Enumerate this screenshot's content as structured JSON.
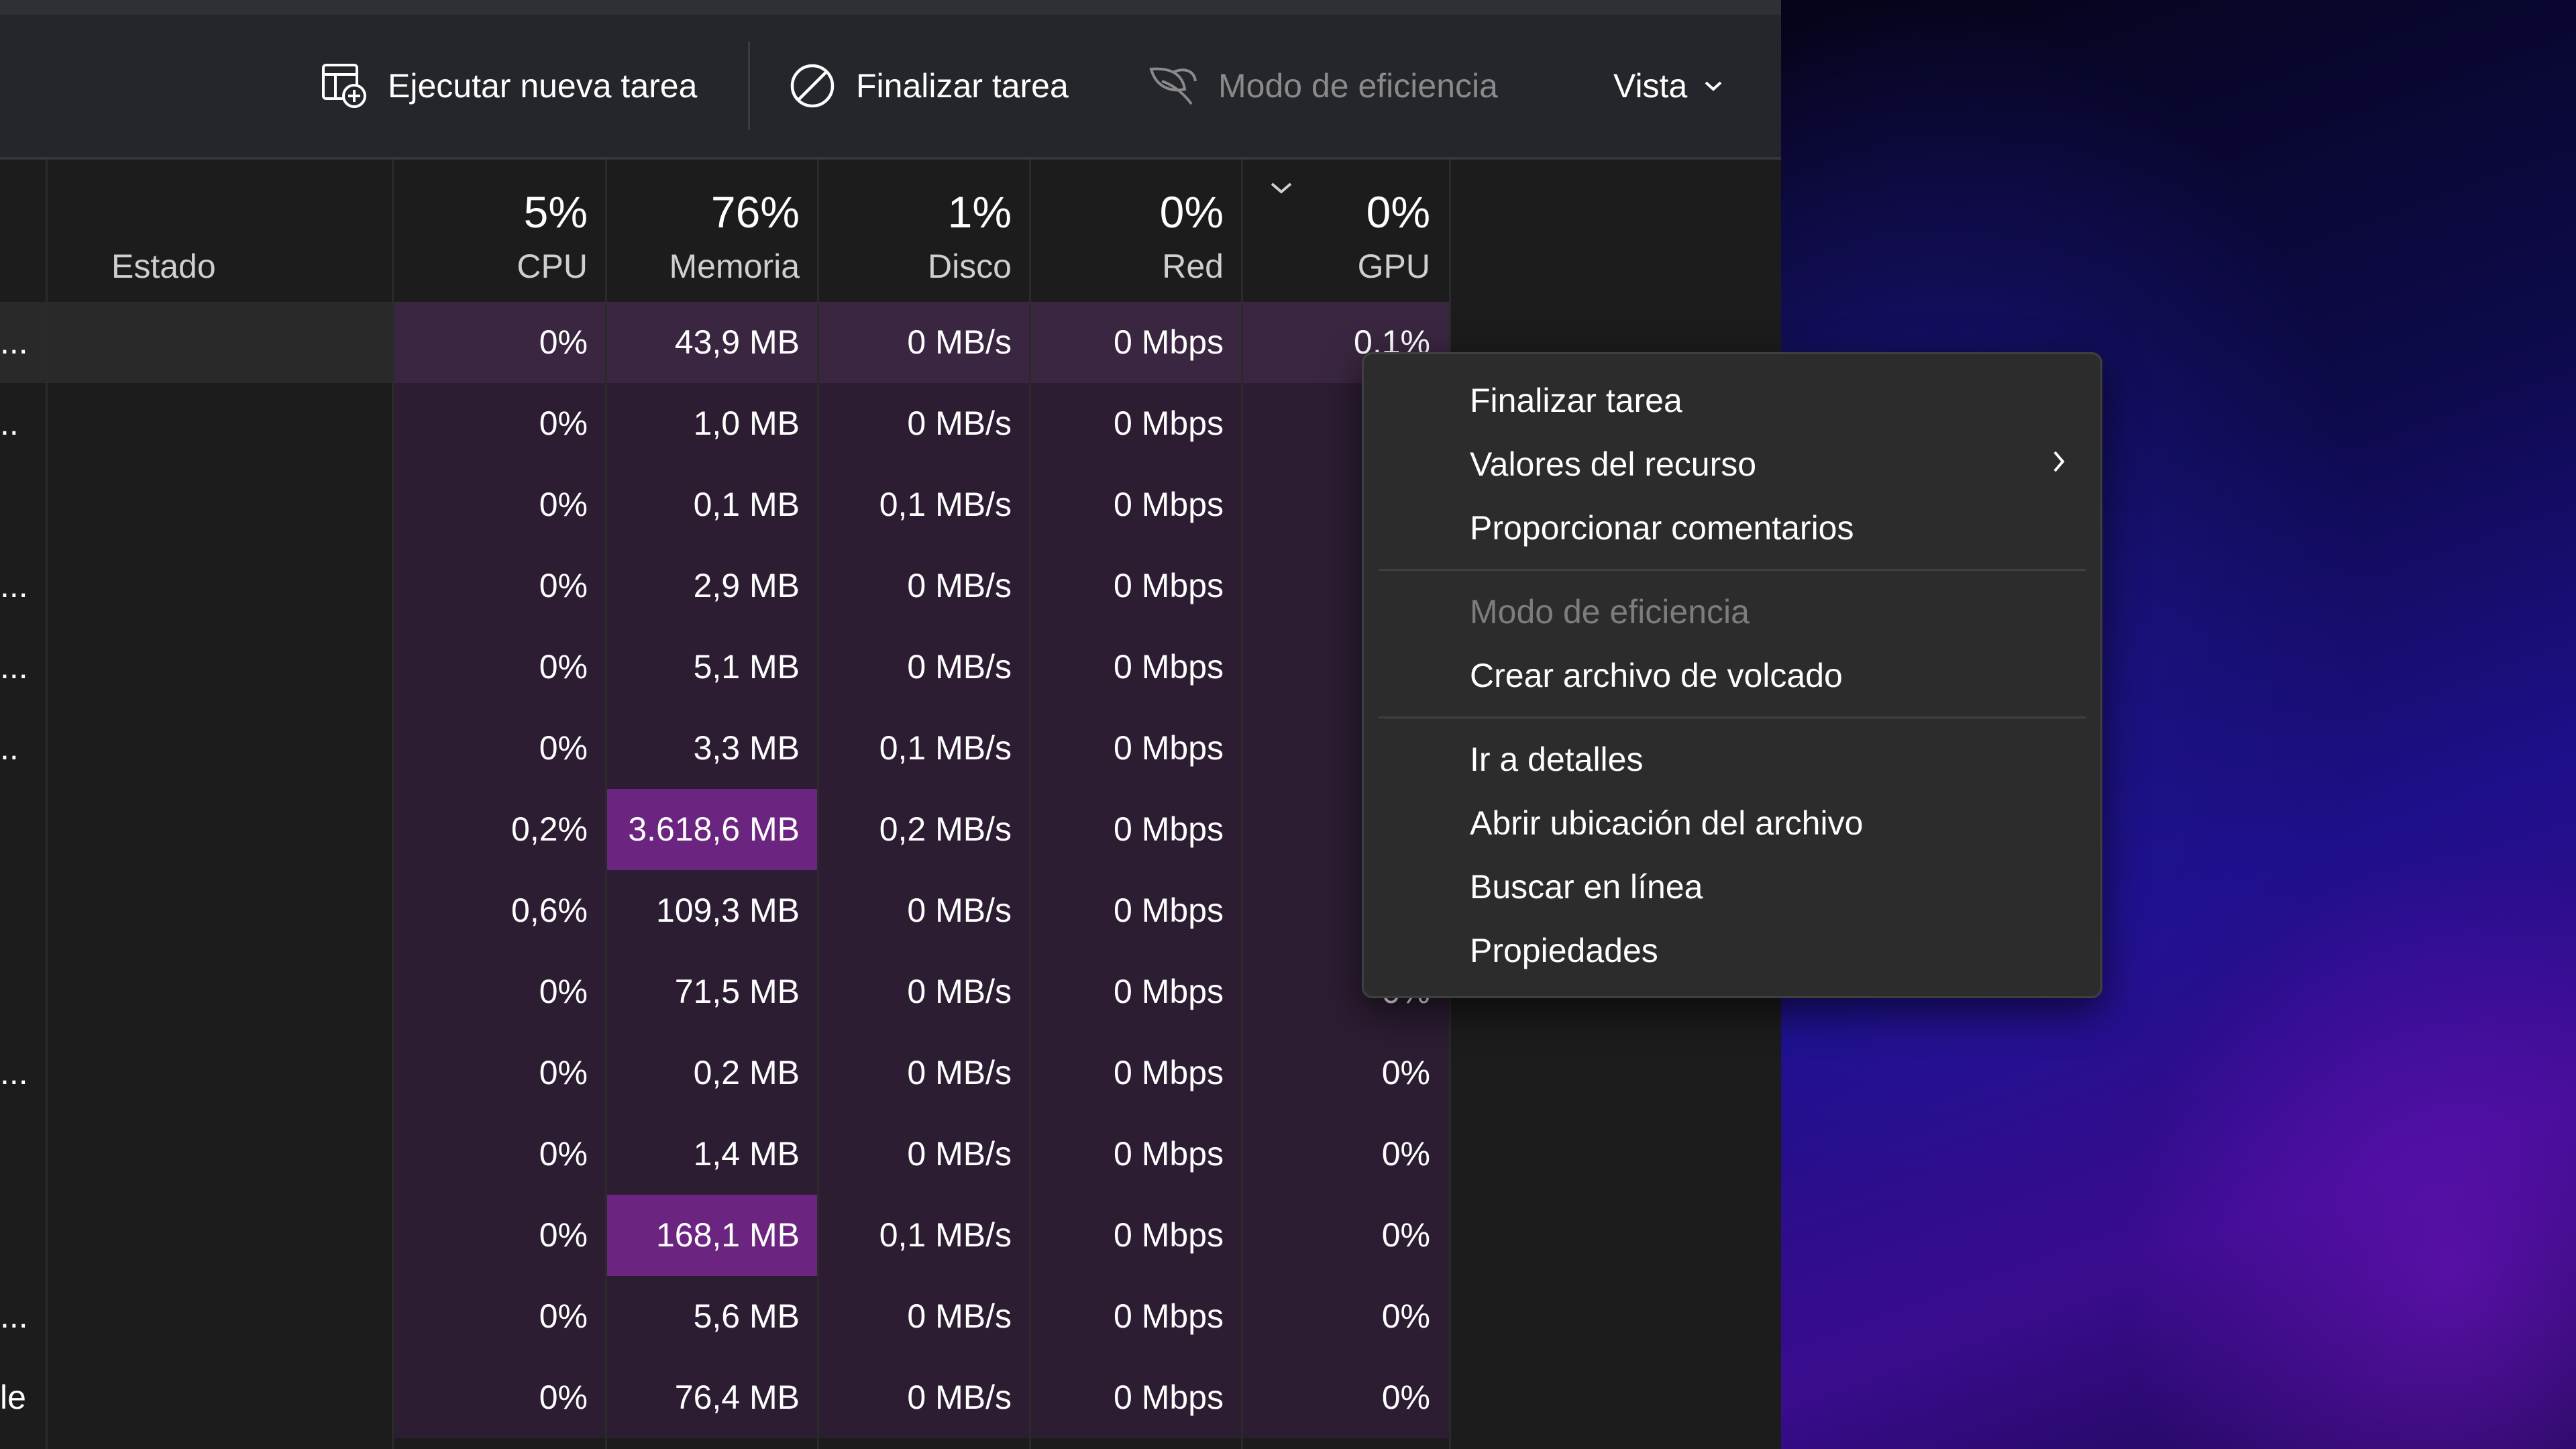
{
  "toolbar": {
    "run_new_task": "Ejecutar nueva tarea",
    "end_task": "Finalizar tarea",
    "efficiency_mode": "Modo de eficiencia",
    "view": "Vista"
  },
  "columns": {
    "status": "Estado",
    "cpu": {
      "pct": "5%",
      "name": "CPU"
    },
    "memory": {
      "pct": "76%",
      "name": "Memoria"
    },
    "disk": {
      "pct": "1%",
      "name": "Disco"
    },
    "network": {
      "pct": "0%",
      "name": "Red"
    },
    "gpu": {
      "pct": "0%",
      "name": "GPU"
    }
  },
  "rows": [
    {
      "name": "...",
      "cpu": "0%",
      "mem": "43,9 MB",
      "disk": "0 MB/s",
      "net": "0 Mbps",
      "gpu": "0,1%"
    },
    {
      "name": "..",
      "cpu": "0%",
      "mem": "1,0 MB",
      "disk": "0 MB/s",
      "net": "0 Mbps",
      "gpu": ""
    },
    {
      "name": "",
      "cpu": "0%",
      "mem": "0,1 MB",
      "disk": "0,1 MB/s",
      "net": "0 Mbps",
      "gpu": ""
    },
    {
      "name": "...",
      "cpu": "0%",
      "mem": "2,9 MB",
      "disk": "0 MB/s",
      "net": "0 Mbps",
      "gpu": ""
    },
    {
      "name": "...",
      "cpu": "0%",
      "mem": "5,1 MB",
      "disk": "0 MB/s",
      "net": "0 Mbps",
      "gpu": ""
    },
    {
      "name": "..",
      "cpu": "0%",
      "mem": "3,3 MB",
      "disk": "0,1 MB/s",
      "net": "0 Mbps",
      "gpu": ""
    },
    {
      "name": "",
      "cpu": "0,2%",
      "mem": "3.618,6 MB",
      "disk": "0,2 MB/s",
      "net": "0 Mbps",
      "gpu": ""
    },
    {
      "name": "",
      "cpu": "0,6%",
      "mem": "109,3 MB",
      "disk": "0 MB/s",
      "net": "0 Mbps",
      "gpu": ""
    },
    {
      "name": "",
      "cpu": "0%",
      "mem": "71,5 MB",
      "disk": "0 MB/s",
      "net": "0 Mbps",
      "gpu": "0%"
    },
    {
      "name": "...",
      "cpu": "0%",
      "mem": "0,2 MB",
      "disk": "0 MB/s",
      "net": "0 Mbps",
      "gpu": "0%"
    },
    {
      "name": "",
      "cpu": "0%",
      "mem": "1,4 MB",
      "disk": "0 MB/s",
      "net": "0 Mbps",
      "gpu": "0%"
    },
    {
      "name": "",
      "cpu": "0%",
      "mem": "168,1 MB",
      "disk": "0,1 MB/s",
      "net": "0 Mbps",
      "gpu": "0%"
    },
    {
      "name": "...",
      "cpu": "0%",
      "mem": "5,6 MB",
      "disk": "0 MB/s",
      "net": "0 Mbps",
      "gpu": "0%"
    },
    {
      "name": "le",
      "cpu": "0%",
      "mem": "76,4 MB",
      "disk": "0 MB/s",
      "net": "0 Mbps",
      "gpu": "0%"
    }
  ],
  "context_menu": {
    "end_task": "Finalizar tarea",
    "resource_values": "Valores del recurso",
    "feedback": "Proporcionar comentarios",
    "efficiency_mode": "Modo de eficiencia",
    "dump_file": "Crear archivo de volcado",
    "go_to_details": "Ir a detalles",
    "open_file_location": "Abrir ubicación del archivo",
    "search_online": "Buscar en línea",
    "properties": "Propiedades"
  },
  "colors": {
    "heat_low": "#2c1d33",
    "heat_high": "#6b2580",
    "menu_bg": "#2c2c2c"
  },
  "icons": [
    "run-task-icon",
    "end-task-icon",
    "efficiency-leaf-icon",
    "chevron-down-icon",
    "chevron-right-icon"
  ]
}
